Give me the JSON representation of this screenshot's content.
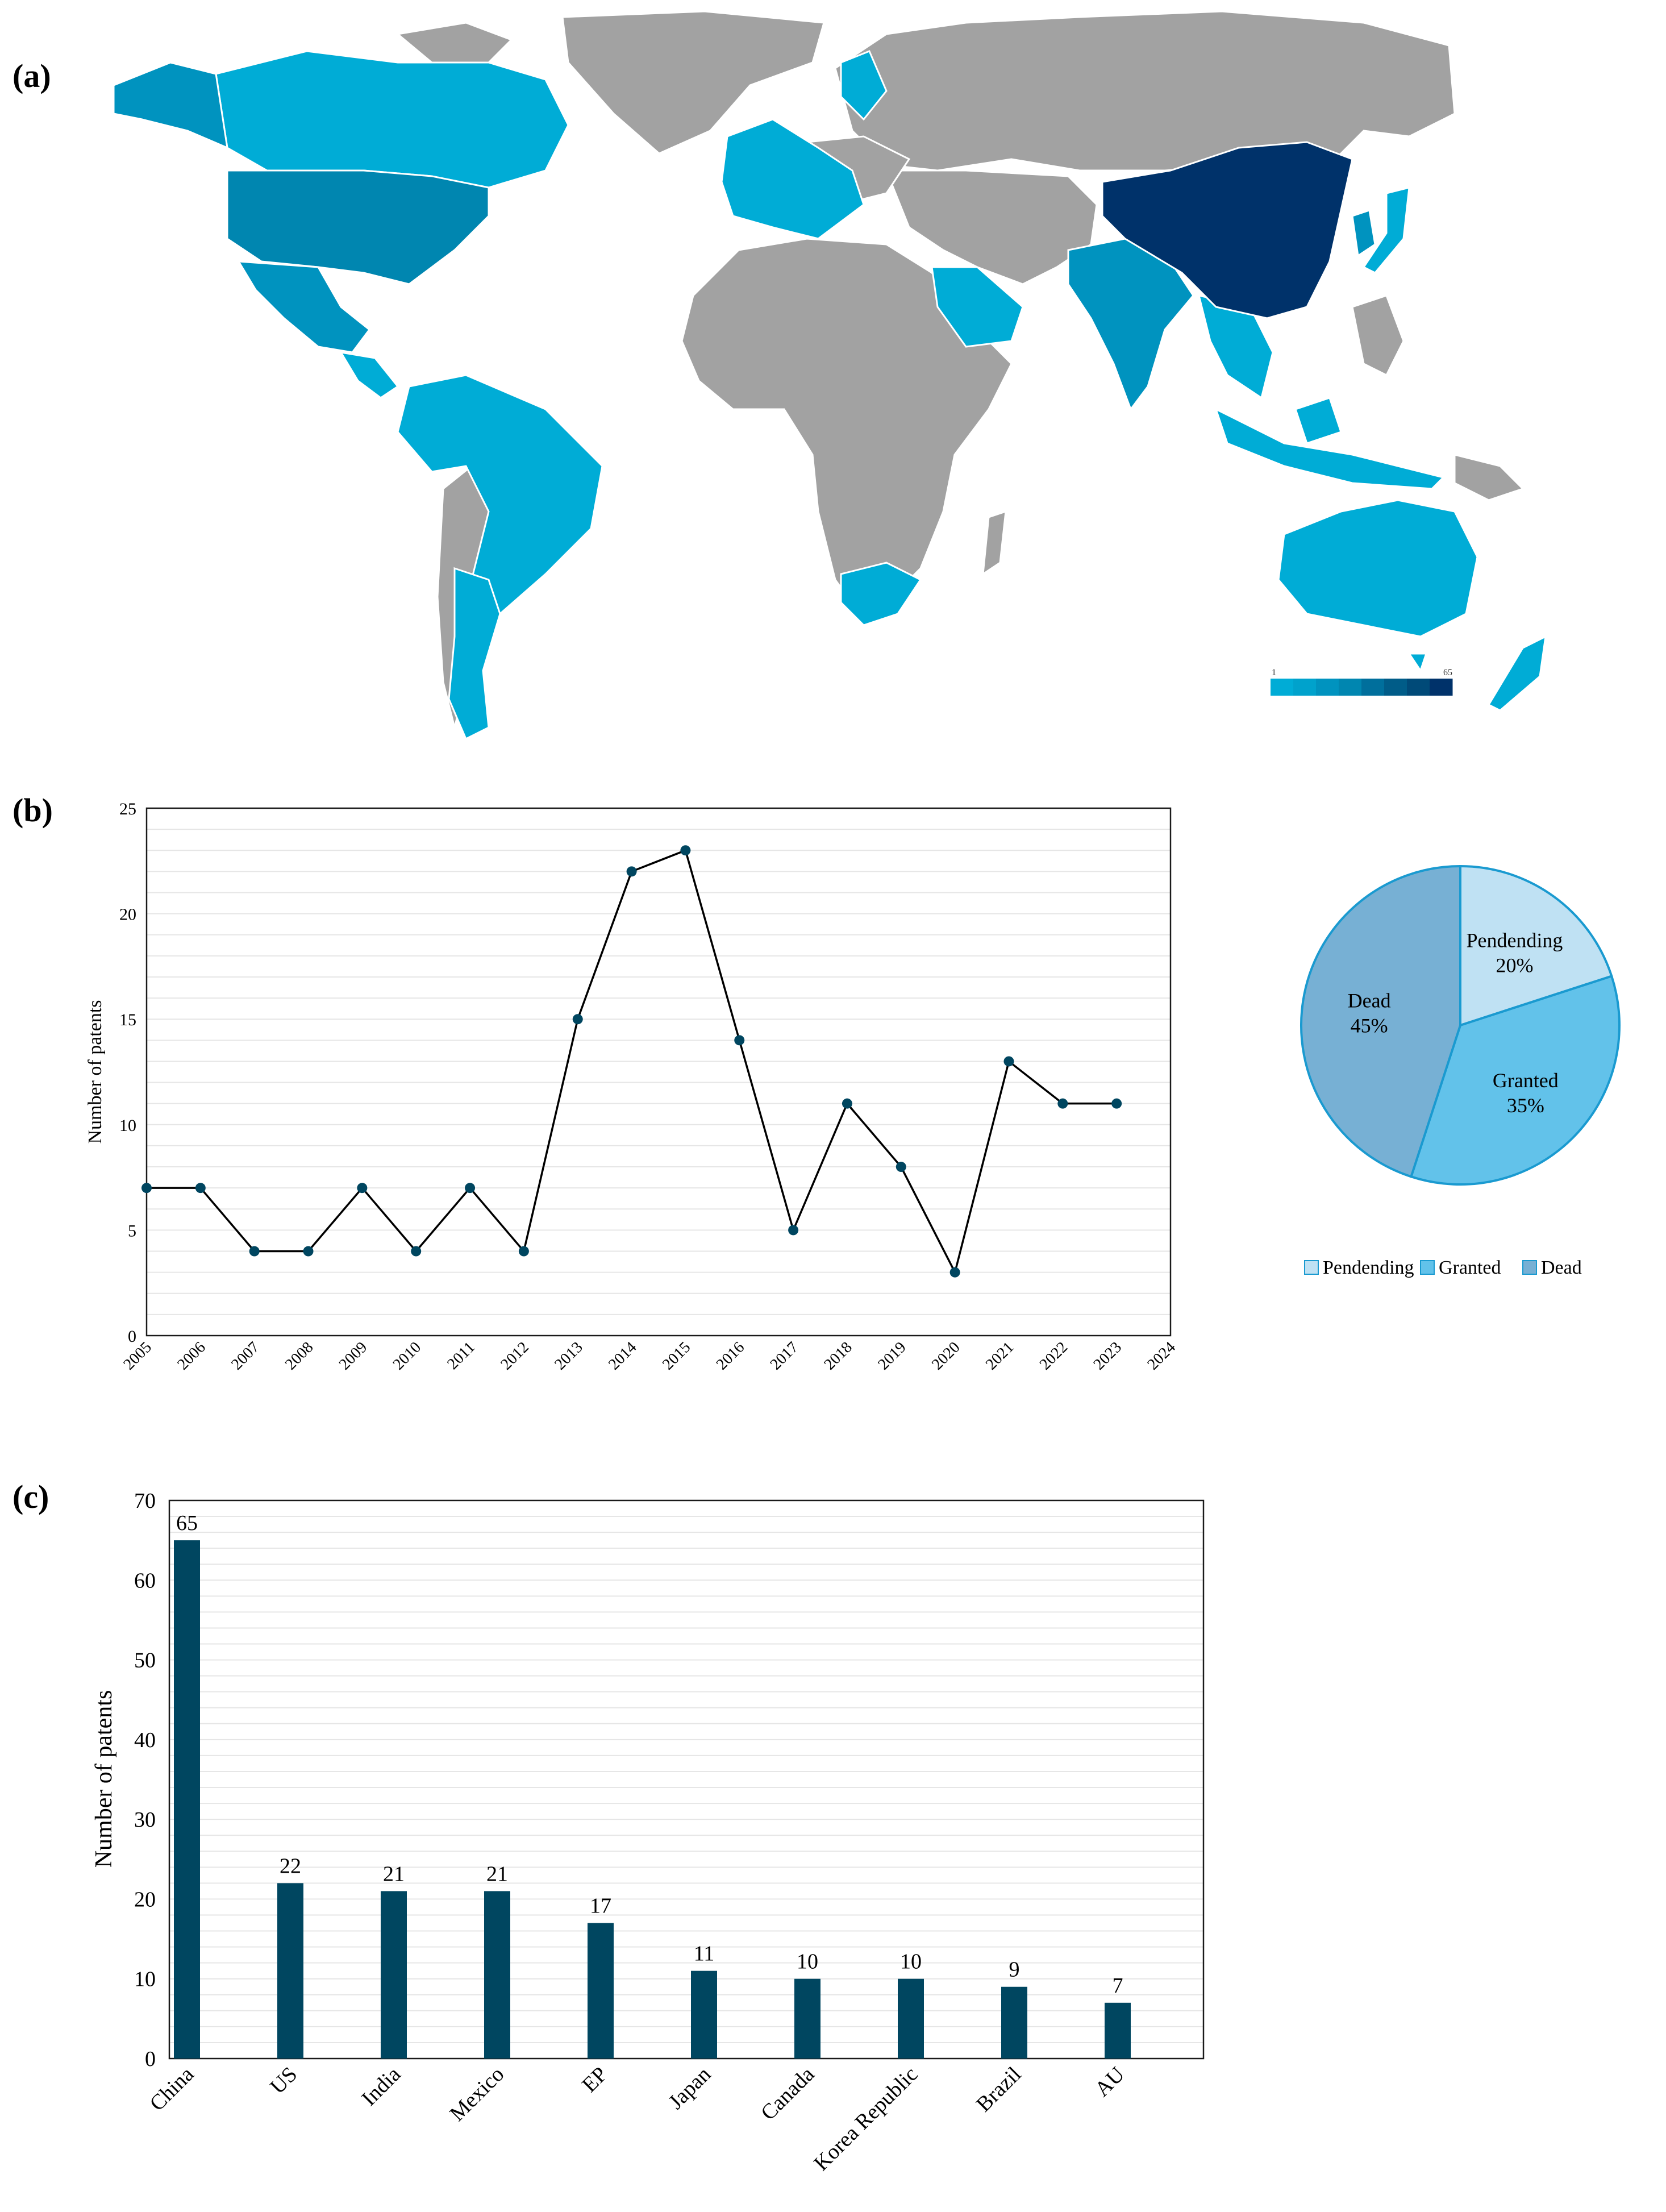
{
  "panels": {
    "a": "(a)",
    "b": "(b)",
    "c": "(c)"
  },
  "colors": {
    "ocean": "#ffffff",
    "no_data": "#a2a2a2",
    "scale_low": "#00acd6",
    "scale_mid": "#0086b0",
    "scale_high": "#00326a",
    "line": "#000000",
    "marker": "#004660",
    "bar": "#004660",
    "grid": "#e6e6e6",
    "pie_pending": "#bfe1f3",
    "pie_granted": "#62c2ea",
    "pie_dead": "#77b0d4",
    "pie_edge": "#1a9ad0"
  },
  "chart_data": [
    {
      "type": "map",
      "legend_min": "1",
      "legend_max": "65",
      "countries": [
        {
          "name": "China",
          "value": 65
        },
        {
          "name": "US",
          "value": 22
        },
        {
          "name": "India",
          "value": 21
        },
        {
          "name": "Mexico",
          "value": 21
        },
        {
          "name": "Japan",
          "value": 11
        },
        {
          "name": "Canada",
          "value": 10
        },
        {
          "name": "Korea Republic",
          "value": 10
        },
        {
          "name": "Brazil",
          "value": 9
        },
        {
          "name": "AU",
          "value": 7
        }
      ]
    },
    {
      "type": "line",
      "ylabel": "Number of patents",
      "ylim": [
        0,
        25
      ],
      "yticks": [
        "0",
        "5",
        "10",
        "15",
        "20",
        "25"
      ],
      "xticks": [
        "2005",
        "2006",
        "2007",
        "2008",
        "2009",
        "2010",
        "2011",
        "2012",
        "2013",
        "2014",
        "2015",
        "2016",
        "2017",
        "2018",
        "2019",
        "2020",
        "2021",
        "2022",
        "2023",
        "2024"
      ],
      "x": [
        2005,
        2006,
        2007,
        2008,
        2009,
        2010,
        2011,
        2012,
        2013,
        2014,
        2015,
        2016,
        2017,
        2018,
        2019,
        2020,
        2021,
        2022,
        2023
      ],
      "values": [
        7,
        7,
        4,
        4,
        7,
        4,
        7,
        4,
        15,
        22,
        23,
        14,
        5,
        11,
        8,
        3,
        13,
        11,
        11
      ]
    },
    {
      "type": "pie",
      "slices": [
        {
          "label": "Pendending",
          "value": 20,
          "pct": "20%"
        },
        {
          "label": "Granted",
          "value": 35,
          "pct": "35%"
        },
        {
          "label": "Dead",
          "value": 45,
          "pct": "45%"
        }
      ],
      "legend": [
        "Pendending",
        "Granted",
        "Dead"
      ]
    },
    {
      "type": "bar",
      "ylabel": "Number of patents",
      "ylim": [
        0,
        70
      ],
      "yticks": [
        "0",
        "10",
        "20",
        "30",
        "40",
        "50",
        "60",
        "70"
      ],
      "categories": [
        "China",
        "US",
        "India",
        "Mexico",
        "EP",
        "Japan",
        "Canada",
        "Korea Republic",
        "Brazil",
        "AU"
      ],
      "values": [
        65,
        22,
        21,
        21,
        17,
        11,
        10,
        10,
        9,
        7
      ]
    }
  ]
}
